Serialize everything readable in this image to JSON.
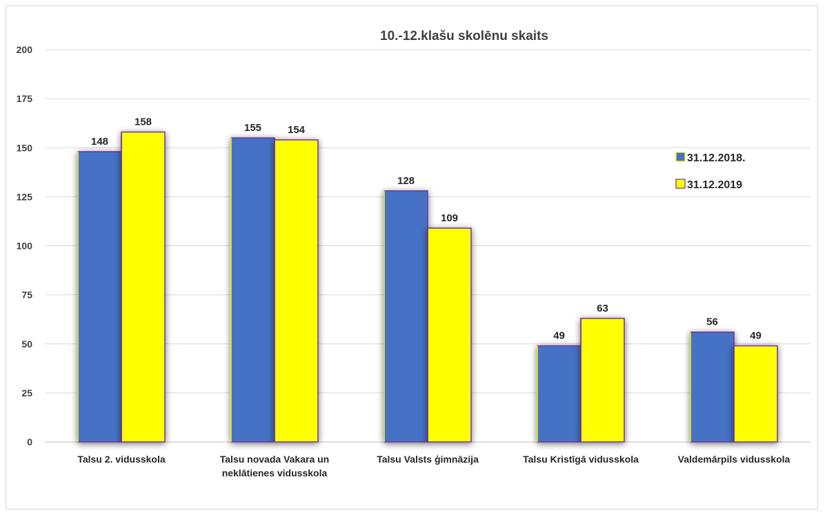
{
  "chart_data": {
    "type": "bar",
    "title": "10.-12.klašu skolēnu skaits",
    "categories": [
      [
        "Talsu 2. vidusskola"
      ],
      [
        "Talsu novada Vakara un",
        "neklātienes vidusskola"
      ],
      [
        "Talsu Valsts ģimnāzija"
      ],
      [
        "Talsu Kristīgā vidusskola"
      ],
      [
        "Valdemārpils vidusskola"
      ]
    ],
    "series": [
      {
        "name": "31.12.2018.",
        "values": [
          148,
          155,
          128,
          49,
          56
        ],
        "color": "#4472c4"
      },
      {
        "name": "31.12.2019",
        "values": [
          158,
          154,
          109,
          63,
          49
        ],
        "color": "#ffff00"
      }
    ],
    "ylim": [
      0,
      200
    ],
    "yticks": [
      0,
      25,
      50,
      75,
      100,
      125,
      150,
      175,
      200
    ],
    "grid": true,
    "legend": "right",
    "bar_edge_color": "#7030a0"
  }
}
